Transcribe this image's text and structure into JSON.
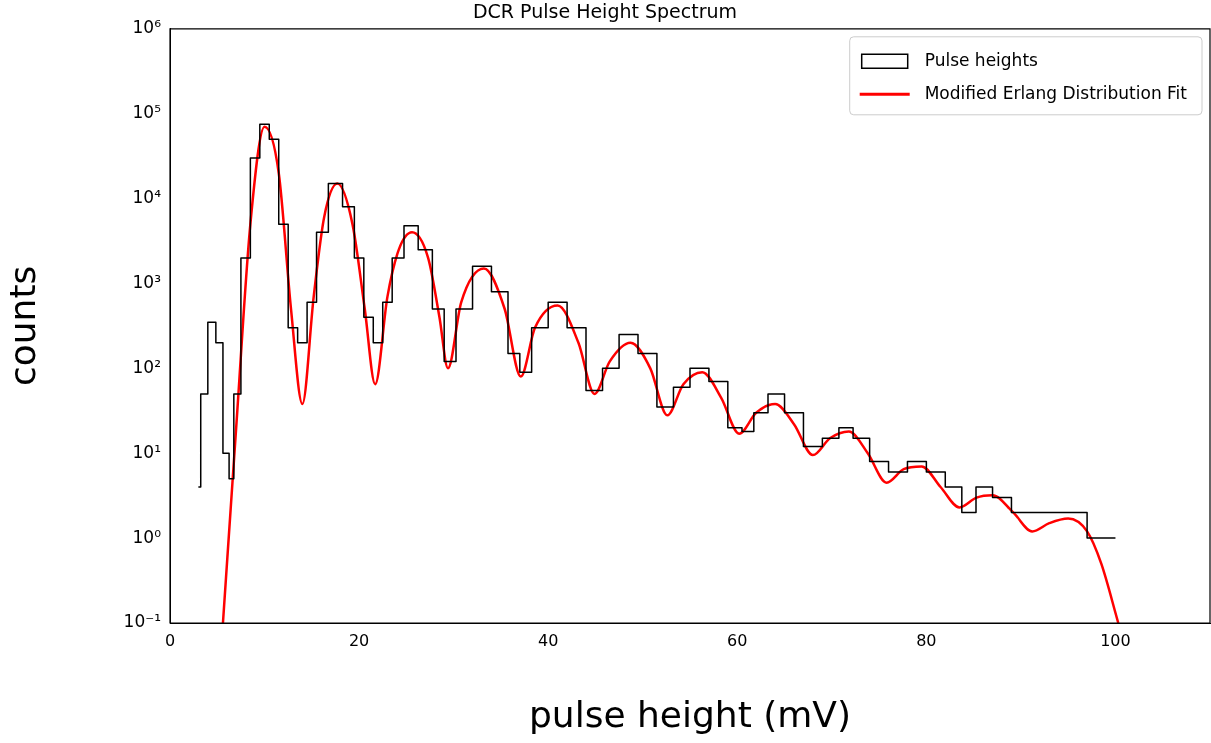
{
  "chart_data": {
    "type": "line",
    "title": "DCR Pulse Height Spectrum",
    "xlabel": "pulse height (mV)",
    "ylabel": "counts",
    "xlim": [
      0,
      110
    ],
    "xticks": [
      0,
      20,
      40,
      60,
      80,
      100
    ],
    "ylim": [
      0.1,
      1000000
    ],
    "yticks": [
      {
        "value": 0.1,
        "label": "10⁻¹"
      },
      {
        "value": 1,
        "label": "10⁰"
      },
      {
        "value": 10,
        "label": "10¹"
      },
      {
        "value": 100,
        "label": "10²"
      },
      {
        "value": 1000,
        "label": "10³"
      },
      {
        "value": 10000,
        "label": "10⁴"
      },
      {
        "value": 100000,
        "label": "10⁵"
      },
      {
        "value": 1000000,
        "label": "10⁶"
      }
    ],
    "log": "y",
    "grid": false,
    "legend": "top right",
    "marker": "none",
    "line_style": "solid",
    "series": [
      {
        "name": "Pulse heights",
        "type": "step",
        "color": "#000000",
        "x": [
          3,
          3.5,
          4.5,
          5.2,
          6,
          6.5,
          7,
          8,
          9,
          10,
          11,
          12,
          13,
          14,
          15,
          16,
          17.5,
          19,
          20,
          21,
          22,
          23,
          24,
          25.5,
          27,
          28.5,
          29.5,
          31,
          33,
          35,
          36.5,
          37.5,
          39,
          41,
          43,
          45,
          46.5,
          48.5,
          50.5,
          52.5,
          54,
          56,
          58,
          60,
          61,
          62.5,
          64,
          66,
          68,
          70,
          71.5,
          73,
          75,
          77,
          79,
          81,
          83,
          84.5,
          86,
          88,
          90,
          92,
          94,
          96,
          98,
          100
        ],
        "values": [
          4,
          50,
          350,
          200,
          10,
          5,
          50,
          2000,
          30000,
          75000,
          50000,
          5000,
          300,
          200,
          600,
          4000,
          15000,
          8000,
          2000,
          400,
          200,
          600,
          2000,
          4800,
          2500,
          500,
          120,
          500,
          1600,
          800,
          150,
          90,
          300,
          600,
          300,
          55,
          100,
          250,
          150,
          35,
          60,
          100,
          70,
          20,
          18,
          30,
          50,
          30,
          12,
          15,
          20,
          15,
          8,
          6,
          8,
          6,
          4,
          2,
          4,
          3,
          2,
          2,
          2,
          2,
          1,
          1
        ]
      },
      {
        "name": "Modified Erlang Distribution Fit",
        "type": "line",
        "color": "#ff0000",
        "x": [
          5.6,
          7,
          8.5,
          10,
          11.5,
          12.8,
          14,
          15.2,
          16.3,
          17.7,
          19.3,
          20.6,
          21.7,
          23,
          24.2,
          25.6,
          27.3,
          28.5,
          29.4,
          30.8,
          33.2,
          35.4,
          37.1,
          38.6,
          41,
          43.2,
          44.9,
          46.5,
          48.7,
          50.8,
          52.6,
          54.3,
          56.3,
          58.3,
          60.2,
          62,
          64,
          66,
          68,
          69.8,
          71.8,
          73.8,
          75.8,
          77.6,
          79.5,
          81.5,
          83.5,
          85.3,
          87,
          89.2,
          91.2,
          93,
          95,
          97,
          98.5,
          100.3
        ],
        "values": [
          0.1,
          20,
          5000,
          70000,
          20000,
          500,
          38,
          700,
          6000,
          15000,
          5000,
          500,
          65,
          700,
          2500,
          4000,
          2000,
          400,
          100,
          600,
          1500,
          500,
          80,
          300,
          550,
          200,
          50,
          120,
          200,
          100,
          28,
          65,
          90,
          45,
          17,
          30,
          38,
          22,
          9.5,
          15,
          18,
          10,
          4.5,
          6.5,
          7,
          4,
          2.3,
          3,
          3.2,
          2,
          1.2,
          1.5,
          1.7,
          1.2,
          0.5,
          0.1
        ]
      }
    ]
  }
}
